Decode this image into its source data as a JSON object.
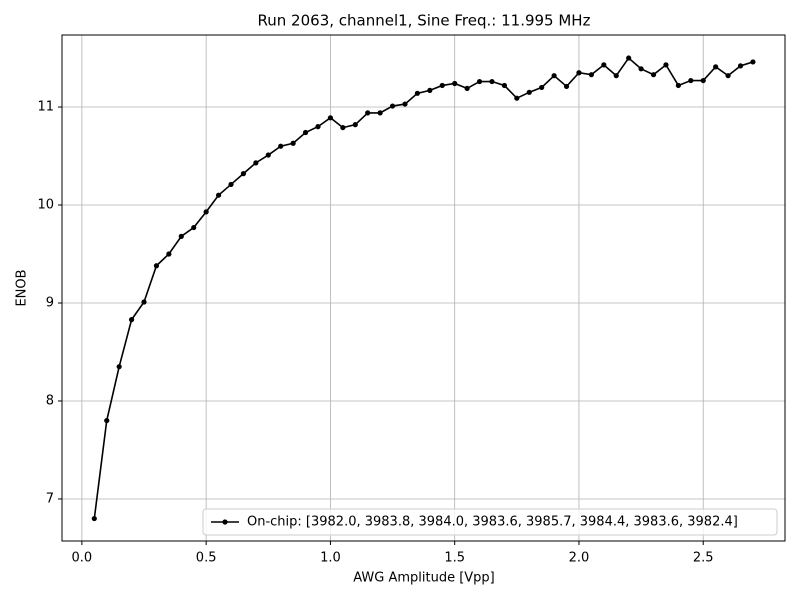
{
  "chart_data": {
    "type": "line",
    "title": "Run 2063, channel1, Sine Freq.: 11.995 MHz",
    "x_label": "AWG Amplitude [Vpp]",
    "y_label": "ENOB",
    "x": [
      0.05,
      0.1,
      0.15,
      0.2,
      0.25,
      0.3,
      0.35,
      0.4,
      0.45,
      0.5,
      0.55,
      0.6,
      0.65,
      0.7,
      0.75,
      0.8,
      0.85,
      0.9,
      0.95,
      1.0,
      1.05,
      1.1,
      1.15,
      1.2,
      1.25,
      1.3,
      1.35,
      1.4,
      1.45,
      1.5,
      1.55,
      1.6,
      1.65,
      1.7,
      1.75,
      1.8,
      1.85,
      1.9,
      1.95,
      2.0,
      2.05,
      2.1,
      2.15,
      2.2,
      2.25,
      2.3,
      2.35,
      2.4,
      2.45,
      2.5,
      2.55,
      2.6,
      2.65,
      2.7
    ],
    "series": [
      {
        "name": "On-chip: [3982.0, 3983.8, 3984.0, 3983.6, 3985.7, 3984.4, 3983.6, 3982.4]",
        "color": "#000000",
        "values": [
          6.8,
          7.8,
          8.35,
          8.83,
          9.01,
          9.38,
          9.5,
          9.68,
          9.77,
          9.93,
          10.1,
          10.21,
          10.32,
          10.43,
          10.51,
          10.6,
          10.63,
          10.74,
          10.8,
          10.89,
          10.79,
          10.82,
          10.94,
          10.94,
          11.01,
          11.03,
          11.14,
          11.17,
          11.22,
          11.24,
          11.19,
          11.26,
          11.26,
          11.22,
          11.09,
          11.15,
          11.2,
          11.32,
          11.21,
          11.35,
          11.33,
          11.43,
          11.32,
          11.5,
          11.39,
          11.33,
          11.43,
          11.22,
          11.27,
          11.27,
          11.41,
          11.32,
          11.42,
          11.46
        ]
      }
    ],
    "xlim": [
      -0.08,
      2.829
    ],
    "ylim": [
      6.571,
      11.735
    ],
    "xticks": [
      {
        "value": 0,
        "label": "0.0"
      },
      0.5,
      {
        "value": 1,
        "label": "1.0"
      },
      1.5,
      {
        "value": 2,
        "label": "2.0"
      },
      2.5
    ],
    "yticks": [
      7,
      8,
      9,
      10,
      11
    ],
    "grid": true,
    "legend": "lower right"
  }
}
